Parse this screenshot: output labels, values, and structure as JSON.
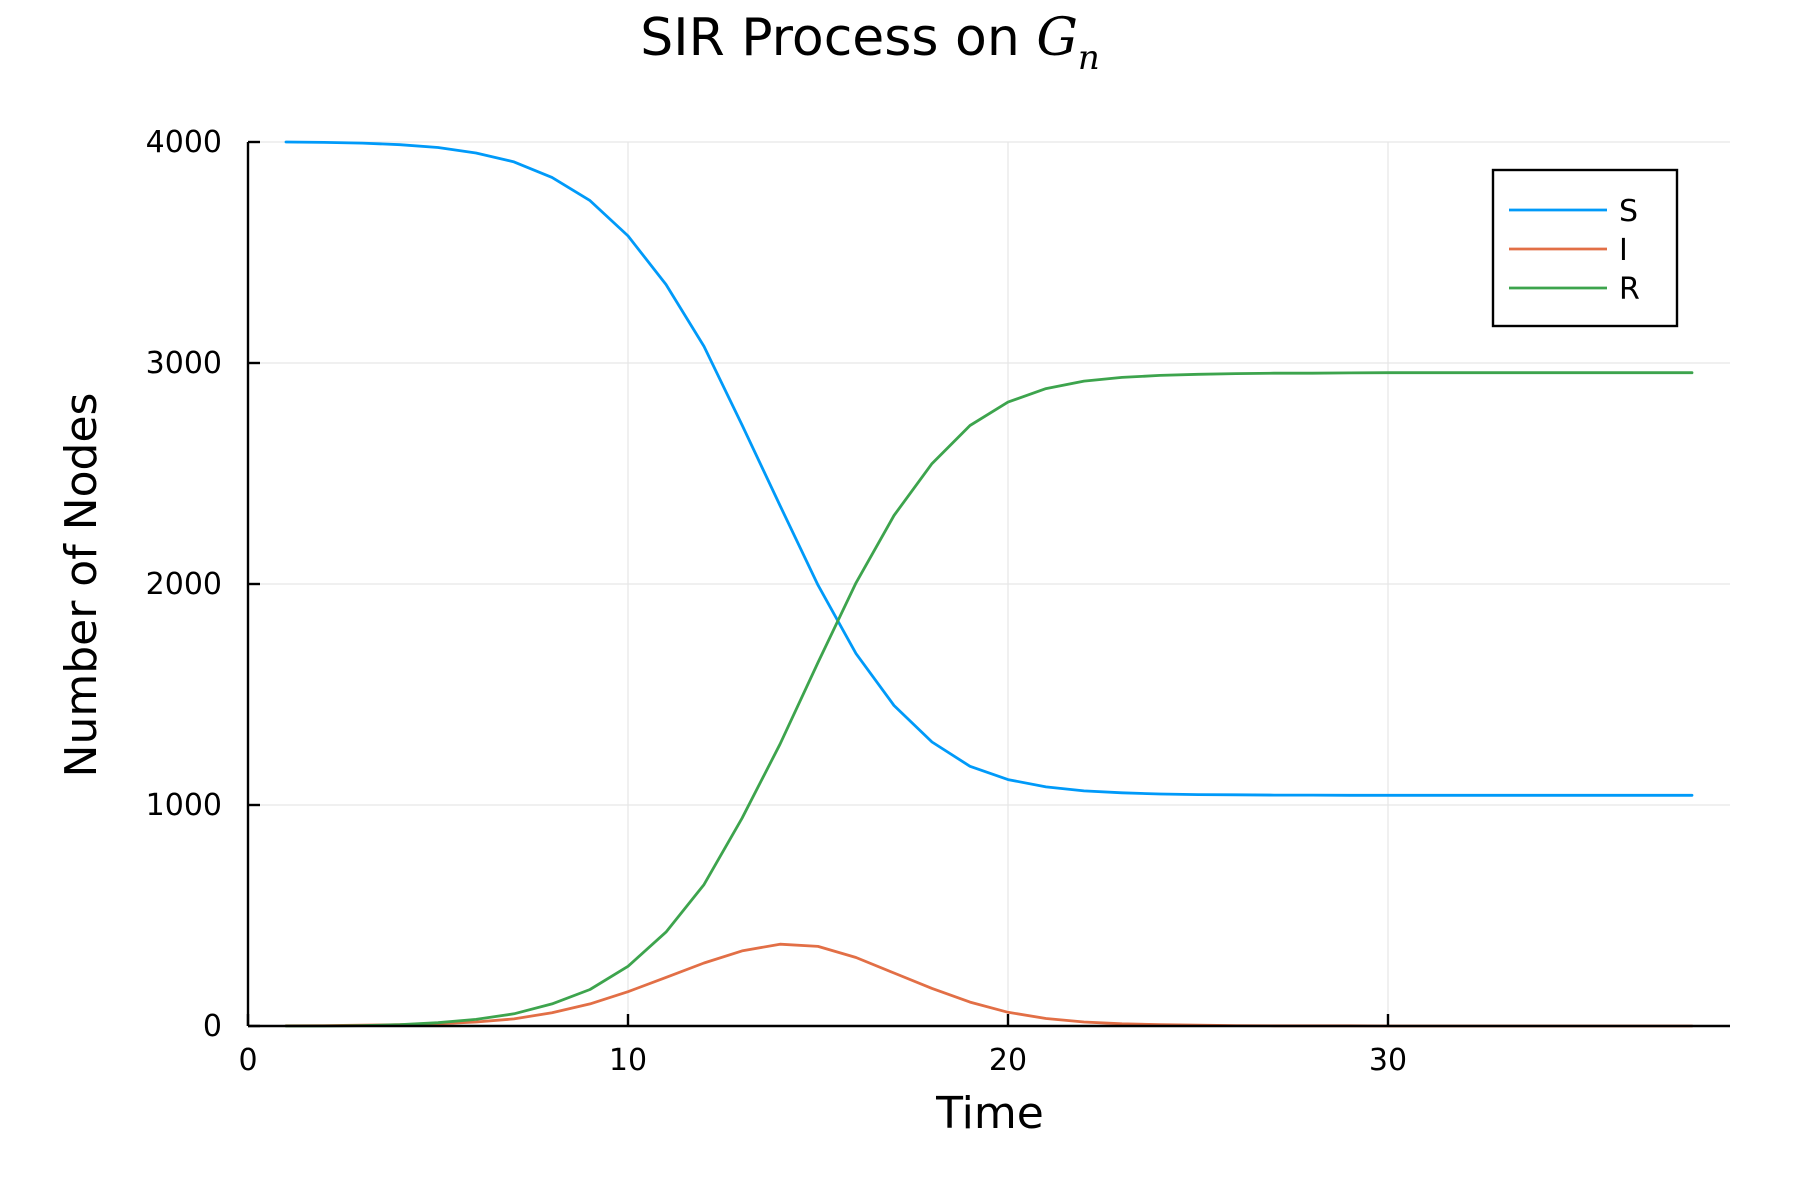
{
  "chart_data": {
    "type": "line",
    "title": "SIR Process on ",
    "title_math": "G",
    "title_math_subscript": "n",
    "xlabel": "Time",
    "ylabel": "Number of Nodes",
    "xlim": [
      0,
      39
    ],
    "ylim": [
      0,
      4000
    ],
    "xticks": [
      0,
      10,
      20,
      30
    ],
    "yticks": [
      0,
      1000,
      2000,
      3000,
      4000
    ],
    "grid": true,
    "legend_position": "top-right",
    "x": [
      1,
      2,
      3,
      4,
      5,
      6,
      7,
      8,
      9,
      10,
      11,
      12,
      13,
      14,
      15,
      16,
      17,
      18,
      19,
      20,
      21,
      22,
      23,
      24,
      25,
      26,
      27,
      28,
      29,
      30,
      31,
      32,
      33,
      34,
      35,
      36,
      37,
      38
    ],
    "series": [
      {
        "name": "S",
        "color": "#009af9",
        "values": [
          4000,
          3998,
          3995,
          3988,
          3975,
          3950,
          3910,
          3840,
          3735,
          3575,
          3355,
          3075,
          2720,
          2355,
          1995,
          1685,
          1450,
          1285,
          1175,
          1115,
          1082,
          1064,
          1055,
          1050,
          1047,
          1046,
          1045,
          1045,
          1044,
          1044,
          1044,
          1044,
          1044,
          1044,
          1044,
          1044,
          1044,
          1044
        ]
      },
      {
        "name": "I",
        "color": "#e26f46",
        "values": [
          1,
          2,
          4,
          6,
          10,
          18,
          32,
          60,
          100,
          155,
          220,
          285,
          340,
          370,
          360,
          310,
          240,
          170,
          108,
          62,
          34,
          18,
          10,
          6,
          4,
          2,
          1,
          1,
          1,
          0,
          0,
          0,
          0,
          0,
          0,
          0,
          0,
          0
        ]
      },
      {
        "name": "R",
        "color": "#3da44d",
        "values": [
          0,
          0,
          2,
          6,
          15,
          30,
          55,
          100,
          165,
          270,
          425,
          640,
          940,
          1275,
          1645,
          2005,
          2310,
          2545,
          2717,
          2823,
          2884,
          2918,
          2935,
          2944,
          2949,
          2952,
          2954,
          2954,
          2955,
          2956,
          2956,
          2956,
          2956,
          2956,
          2956,
          2956,
          2956,
          2956
        ]
      }
    ]
  }
}
